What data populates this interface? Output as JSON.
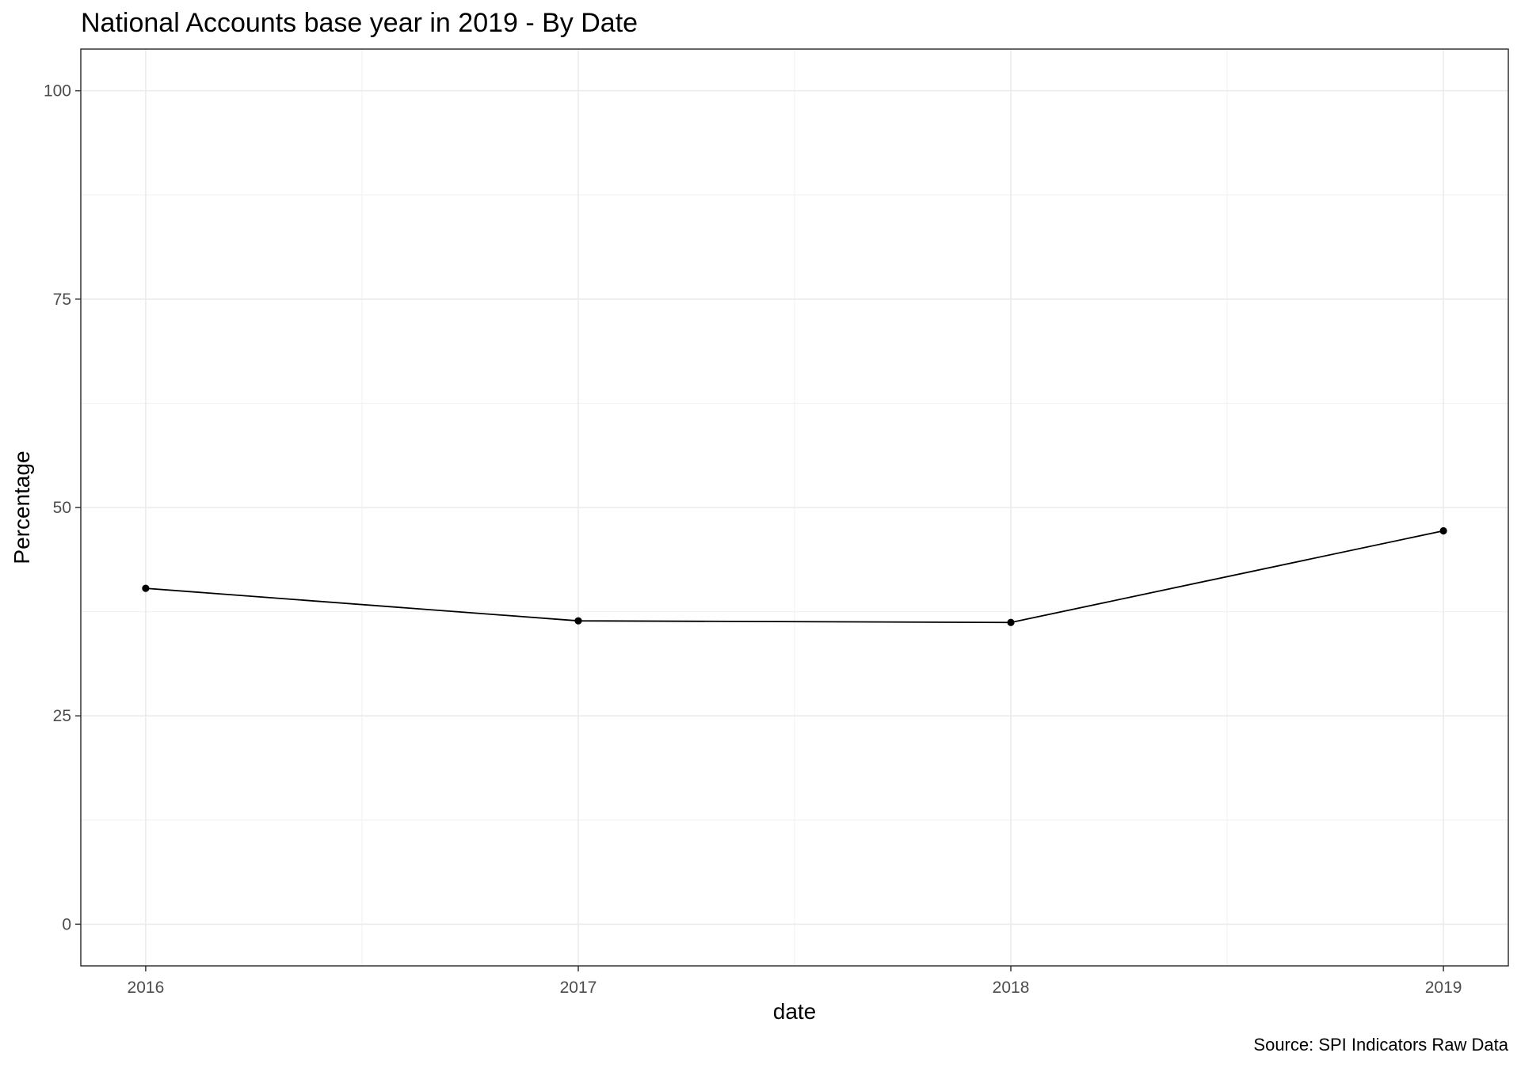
{
  "chart_data": {
    "type": "line",
    "title": "National Accounts base year in 2019 - By Date",
    "xlabel": "date",
    "ylabel": "Percentage",
    "caption": "Source: SPI Indicators Raw Data",
    "x": [
      2016,
      2017,
      2018,
      2019
    ],
    "x_tick_labels": [
      "2016",
      "2017",
      "2018",
      "2019"
    ],
    "y_ticks": [
      0,
      25,
      50,
      75,
      100
    ],
    "y_tick_labels": [
      "0",
      "25",
      "50",
      "75",
      "100"
    ],
    "xlim": [
      2015.85,
      2019.15
    ],
    "ylim": [
      -5,
      105
    ],
    "grid": true,
    "legend": "none",
    "series": [
      {
        "values": [
          40.3,
          36.4,
          36.2,
          47.2
        ],
        "color": "#000000"
      }
    ]
  }
}
